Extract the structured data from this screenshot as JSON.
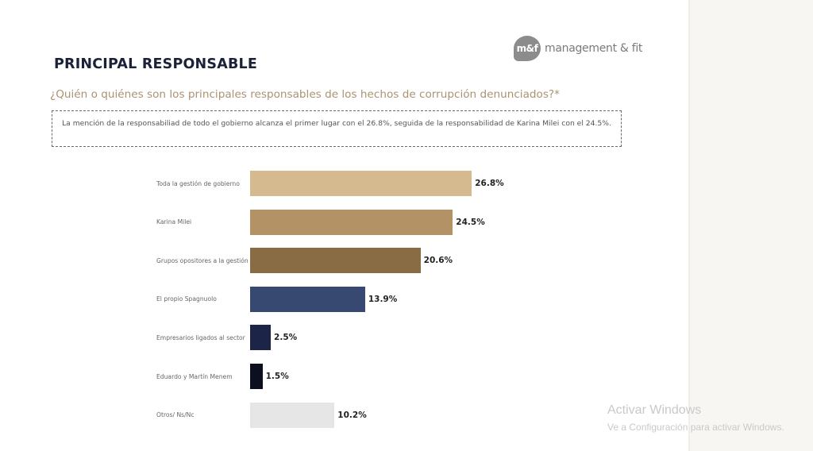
{
  "logo": {
    "mark": "m&f",
    "text": "management & fit"
  },
  "title": "PRINCIPAL RESPONSABLE",
  "subtitle": "¿Quién o quiénes son los principales responsables de los hechos de corrupción denunciados?*",
  "summary": "La mención de la responsabiliad de todo el gobierno alcanza el primer lugar con el 26.8%, seguida de la responsabilidad de Karina Milei con el 24.5%.",
  "chart_data": {
    "type": "bar",
    "orientation": "horizontal",
    "title": "PRINCIPAL RESPONSABLE",
    "subtitle": "¿Quién o quiénes son los principales responsables de los hechos de corrupción denunciados?*",
    "xlabel": "",
    "ylabel": "",
    "unit": "%",
    "grid": false,
    "legend": "none",
    "xlim": [
      0,
      30
    ],
    "categories": [
      "Toda la gestión de gobierno",
      "Karina Milei",
      "Grupos opositores a la gestión",
      "El propio Spagnuolo",
      "Empresarios ligados al sector",
      "Eduardo y Martín Menem",
      "Otros/ Ns/Nc"
    ],
    "values": [
      26.8,
      24.5,
      20.6,
      13.9,
      2.5,
      1.5,
      10.2
    ],
    "value_labels": [
      "26.8%",
      "24.5%",
      "20.6%",
      "13.9%",
      "2.5%",
      "1.5%",
      "10.2%"
    ],
    "colors": [
      "#d5b98f",
      "#b39265",
      "#8a6c44",
      "#374970",
      "#1c2447",
      "#0b0f1e",
      "#e6e6e6"
    ]
  },
  "watermark": {
    "title": "Activar Windows",
    "subtitle": "Ve a Configuración para activar Windows."
  }
}
